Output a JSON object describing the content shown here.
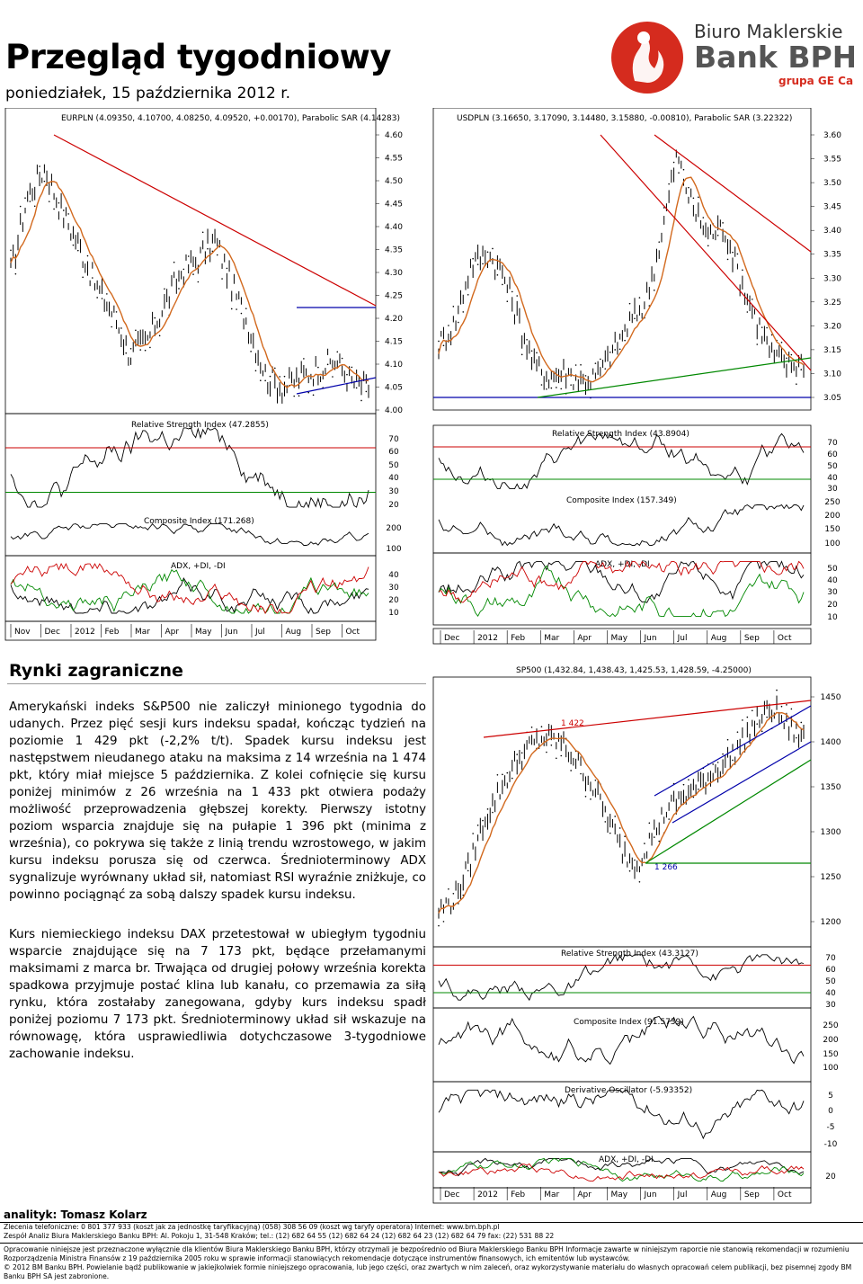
{
  "header": {
    "title": "Przegląd tygodniowy",
    "date": "poniedziałek, 15 października 2012 r."
  },
  "logo": {
    "line1": "Biuro Maklerskie",
    "line2": "Bank BPH",
    "line3": "grupa GE Capital",
    "color": "#d52b1e"
  },
  "chart_data": [
    {
      "type": "line",
      "title": "EURPLN (4.09350, 4.10700, 4.08250, 4.09520, +0.00170), Parabolic SAR (4.14283)",
      "yticks": [
        "4.60",
        "4.55",
        "4.50",
        "4.45",
        "4.40",
        "4.35",
        "4.30",
        "4.25",
        "4.20",
        "4.15",
        "4.10",
        "4.05",
        "4.00"
      ],
      "ylim": [
        4.0,
        4.6
      ],
      "x": [
        "Nov",
        "Dec",
        "2012",
        "Feb",
        "Mar",
        "Apr",
        "May",
        "Jun",
        "Jul",
        "Aug",
        "Sep",
        "Oct"
      ],
      "indicators": [
        {
          "name": "Relative Strength Index (47.2855)",
          "ticks": [
            "70",
            "60",
            "50",
            "40",
            "30",
            "20"
          ]
        },
        {
          "name": "Composite Index (171.268)",
          "ticks": [
            "200",
            "100"
          ]
        },
        {
          "name": "ADX, +DI, -DI",
          "ticks": [
            "40",
            "30",
            "20",
            "10"
          ]
        }
      ]
    },
    {
      "type": "line",
      "title": "USDPLN (3.16650, 3.17090, 3.14480, 3.15880, -0.00810), Parabolic SAR (3.22322)",
      "yticks": [
        "3.60",
        "3.55",
        "3.50",
        "3.45",
        "3.40",
        "3.35",
        "3.30",
        "3.25",
        "3.20",
        "3.15",
        "3.10",
        "3.05"
      ],
      "ylim": [
        3.05,
        3.6
      ],
      "x": [
        "Dec",
        "2012",
        "Feb",
        "Mar",
        "Apr",
        "May",
        "Jun",
        "Jul",
        "Aug",
        "Sep",
        "Oct"
      ],
      "indicators": [
        {
          "name": "Relative Strength Index (43.8904)",
          "ticks": [
            "70",
            "60",
            "50",
            "40",
            "30"
          ]
        },
        {
          "name": "Composite Index (157.349)",
          "ticks": [
            "250",
            "200",
            "150",
            "100"
          ]
        },
        {
          "name": "ADX, +DI, -DI",
          "ticks": [
            "50",
            "40",
            "30",
            "20",
            "10"
          ]
        }
      ]
    },
    {
      "type": "line",
      "title": "SP500 (1,432.84, 1,438.43, 1,425.53, 1,428.59, -4.25000)",
      "yticks": [
        "1450",
        "1400",
        "1350",
        "1300",
        "1250",
        "1200"
      ],
      "ylim": [
        1200,
        1480
      ],
      "annotations": [
        "1 422",
        "1 266"
      ],
      "x": [
        "Dec",
        "2012",
        "Feb",
        "Mar",
        "Apr",
        "May",
        "Jun",
        "Jul",
        "Aug",
        "Sep",
        "Oct"
      ],
      "indicators": [
        {
          "name": "Relative Strength Index (43.3127)",
          "ticks": [
            "70",
            "60",
            "50",
            "40",
            "30"
          ]
        },
        {
          "name": "Composite Index (91.5739)",
          "ticks": [
            "250",
            "200",
            "150",
            "100"
          ]
        },
        {
          "name": "Derivative Oscillator (-5.93352)",
          "ticks": [
            "5",
            "0",
            "-5",
            "-10"
          ]
        },
        {
          "name": "ADX, +DI, -DI",
          "ticks": [
            "20"
          ]
        }
      ]
    }
  ],
  "section": {
    "title": "Rynki zagraniczne"
  },
  "paragraphs": [
    "Amerykański indeks S&P500 nie zaliczył minionego tygodnia do udanych. Przez pięć sesji kurs indeksu spadał, kończąc tydzień na poziomie 1 429 pkt (-2,2% t/t). Spadek kursu indeksu jest następstwem nieudanego ataku na maksima z 14 września na 1 474 pkt, który miał miejsce 5 października. Z kolei cofnięcie się kursu poniżej minimów z 26 września na 1 433 pkt otwiera podaży możliwość przeprowadzenia głębszej korekty. Pierwszy istotny poziom wsparcia znajduje się na pułapie 1 396 pkt (minima z września), co pokrywa się także z linią trendu wzrostowego, w jakim kursu indeksu porusza się od czerwca. Średnioterminowy ADX sygnalizuje wyrównany układ sił, natomiast RSI wyraźnie zniżkuje, co powinno pociągnąć za sobą dalszy spadek kursu indeksu.",
    "Kurs niemieckiego indeksu DAX przetestował w ubiegłym tygodniu wsparcie znajdujące się na 7 173 pkt, będące przełamanymi maksimami z marca br. Trwająca od drugiej połowy września korekta spadkowa przyjmuje postać klina lub kanału, co przemawia za siłą rynku, która zostałaby zanegowana, gdyby kurs indeksu spadł poniżej poziomu 7 173 pkt. Średnioterminowy układ sił wskazuje na równowagę, która usprawiedliwia dotychczasowe 3-tygodniowe zachowanie indeksu."
  ],
  "footer": {
    "analyst": "analityk: Tomasz Kolarz",
    "line1": "Zlecenia telefoniczne: 0 801 377 933 (koszt jak za jednostkę taryfikacyjną) (058) 308 56 09 (koszt wg taryfy operatora) Internet: www.bm.bph.pl",
    "line2": "Zespół Analiz Biura Maklerskiego Banku BPH: Al. Pokoju 1, 31-548 Kraków; tel.: (12) 682 64 55 (12) 682 64 24 (12) 682 64 23 (12) 682 64 79 fax: (22) 531 88 22",
    "line3": "Opracowanie niniejsze jest przeznaczone wyłącznie dla klientów Biura Maklerskiego Banku BPH, którzy otrzymali je bezpośrednio od Biura Maklerskiego Banku BPH Informacje zawarte w niniejszym raporcie nie stanowią rekomendacji w rozumieniu",
    "line4": "Rozporządzenia Ministra Finansów z 19 października 2005 roku w sprawie informacji stanowiących rekomendacje dotyczące instrumentów finansowych, ich emitentów lub wystawców.",
    "line5": "© 2012 BM Banku BPH. Powielanie bądź publikowanie w jakiejkolwiek formie niniejszego opracowania, lub jego części, oraz zwartych w nim zaleceń, oraz wykorzystywanie materiału do własnych opracowań celem publikacji, bez pisemnej zgody BM",
    "line6": "Banku BPH SA jest zabronione."
  }
}
